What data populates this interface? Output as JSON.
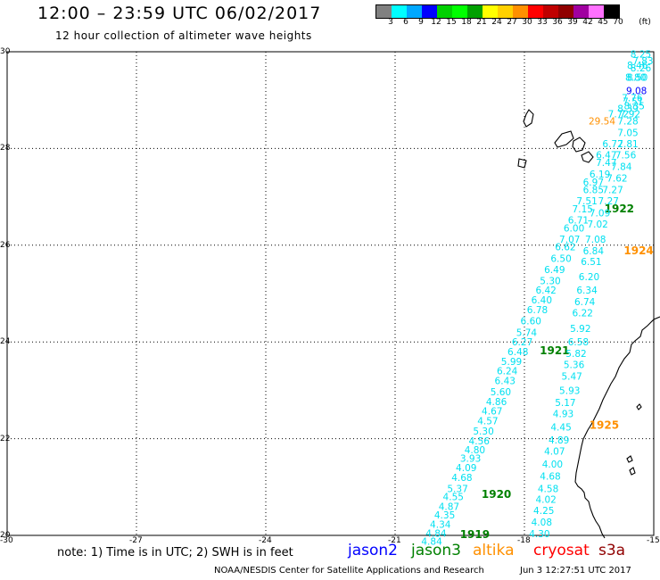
{
  "header": {
    "title": "12:00 – 23:59 UTC 06/02/2017",
    "subtitle": "12 hour collection of altimeter wave heights"
  },
  "legend": {
    "colors": [
      "#808080",
      "#00ffff",
      "#00a8ff",
      "#0000ff",
      "#00d000",
      "#00ff00",
      "#00a000",
      "#ffff00",
      "#ffd000",
      "#ff9000",
      "#ff0000",
      "#c00000",
      "#900000",
      "#a000a0",
      "#ff70ff",
      "#000000"
    ],
    "labels": [
      "3",
      "6",
      "9",
      "12",
      "15",
      "18",
      "21",
      "24",
      "27",
      "30",
      "33",
      "36",
      "39",
      "42",
      "45",
      "70",
      "(ft)"
    ]
  },
  "map": {
    "lon_ticks": [
      "-30",
      "-27",
      "-24",
      "-21",
      "-18",
      "-15"
    ],
    "lat_ticks": [
      "30",
      "28",
      "26",
      "24",
      "22",
      "20"
    ],
    "lat_range": [
      20,
      30
    ],
    "lon_range": [
      -30,
      -15
    ],
    "track_color": "#00e0f0",
    "labels": [
      {
        "text": "8.25",
        "lon": -15.3,
        "lat": 29.95,
        "color": "#00e0f0"
      },
      {
        "text": "7.83",
        "lon": -15.25,
        "lat": 29.82,
        "color": "#00e0f0"
      },
      {
        "text": "8.46",
        "lon": -15.38,
        "lat": 29.72,
        "color": "#00e0f0"
      },
      {
        "text": "8.26",
        "lon": -15.3,
        "lat": 29.67,
        "color": "#00e0f0"
      },
      {
        "text": "8.80",
        "lon": -15.42,
        "lat": 29.47,
        "color": "#00e0f0"
      },
      {
        "text": "8.50",
        "lon": -15.38,
        "lat": 29.47,
        "color": "#00e0f0"
      },
      {
        "text": "9.08",
        "lon": -15.4,
        "lat": 29.2,
        "color": "#0000ff"
      },
      {
        "text": "7.76",
        "lon": -15.5,
        "lat": 29.05,
        "color": "#00e0f0"
      },
      {
        "text": "7.51",
        "lon": -15.48,
        "lat": 28.98,
        "color": "#00e0f0"
      },
      {
        "text": "8.35",
        "lon": -15.45,
        "lat": 28.88,
        "color": "#00e0f0"
      },
      {
        "text": "8.39",
        "lon": -15.6,
        "lat": 28.83,
        "color": "#00e0f0"
      },
      {
        "text": "7.72",
        "lon": -15.82,
        "lat": 28.72,
        "color": "#00e0f0"
      },
      {
        "text": "7.92",
        "lon": -15.55,
        "lat": 28.72,
        "color": "#00e0f0"
      },
      {
        "text": "29.54",
        "lon": -16.2,
        "lat": 28.57,
        "color": "#ff9000"
      },
      {
        "text": "7.28",
        "lon": -15.6,
        "lat": 28.57,
        "color": "#00e0f0"
      },
      {
        "text": "7.05",
        "lon": -15.6,
        "lat": 28.33,
        "color": "#00e0f0"
      },
      {
        "text": "6.72",
        "lon": -15.95,
        "lat": 28.1,
        "color": "#00e0f0"
      },
      {
        "text": "7.81",
        "lon": -15.6,
        "lat": 28.1,
        "color": "#00e0f0"
      },
      {
        "text": "6.47",
        "lon": -16.1,
        "lat": 27.87,
        "color": "#00e0f0"
      },
      {
        "text": "7.56",
        "lon": -15.65,
        "lat": 27.87,
        "color": "#00e0f0"
      },
      {
        "text": "7.47",
        "lon": -16.1,
        "lat": 27.71,
        "color": "#00e0f0"
      },
      {
        "text": "7.84",
        "lon": -15.75,
        "lat": 27.63,
        "color": "#00e0f0"
      },
      {
        "text": "6.19",
        "lon": -16.25,
        "lat": 27.47,
        "color": "#00e0f0"
      },
      {
        "text": "7.62",
        "lon": -15.85,
        "lat": 27.39,
        "color": "#00e0f0"
      },
      {
        "text": "6.97",
        "lon": -16.4,
        "lat": 27.31,
        "color": "#00e0f0"
      },
      {
        "text": "6.85",
        "lon": -16.4,
        "lat": 27.15,
        "color": "#00e0f0"
      },
      {
        "text": "7.27",
        "lon": -15.95,
        "lat": 27.15,
        "color": "#00e0f0"
      },
      {
        "text": "7.51",
        "lon": -16.55,
        "lat": 26.92,
        "color": "#00e0f0"
      },
      {
        "text": "7.27",
        "lon": -16.05,
        "lat": 26.92,
        "color": "#00e0f0"
      },
      {
        "text": "7.15",
        "lon": -16.65,
        "lat": 26.75,
        "color": "#00e0f0"
      },
      {
        "text": "1922",
        "lon": -15.8,
        "lat": 26.75,
        "color": "#008000",
        "bold": true
      },
      {
        "text": "7.09",
        "lon": -16.25,
        "lat": 26.67,
        "color": "#00e0f0"
      },
      {
        "text": "6.71",
        "lon": -16.75,
        "lat": 26.52,
        "color": "#00e0f0"
      },
      {
        "text": "7.02",
        "lon": -16.3,
        "lat": 26.44,
        "color": "#00e0f0"
      },
      {
        "text": "6.00",
        "lon": -16.85,
        "lat": 26.36,
        "color": "#00e0f0"
      },
      {
        "text": "7.07",
        "lon": -16.95,
        "lat": 26.13,
        "color": "#00e0f0"
      },
      {
        "text": "7.08",
        "lon": -16.35,
        "lat": 26.13,
        "color": "#00e0f0"
      },
      {
        "text": "6.62",
        "lon": -17.05,
        "lat": 25.97,
        "color": "#00e0f0"
      },
      {
        "text": "6.84",
        "lon": -16.4,
        "lat": 25.89,
        "color": "#00e0f0"
      },
      {
        "text": "1924",
        "lon": -15.35,
        "lat": 25.89,
        "color": "#ff9000",
        "bold": true
      },
      {
        "text": "6.50",
        "lon": -17.15,
        "lat": 25.73,
        "color": "#00e0f0"
      },
      {
        "text": "6.51",
        "lon": -16.45,
        "lat": 25.66,
        "color": "#00e0f0"
      },
      {
        "text": "6.49",
        "lon": -17.3,
        "lat": 25.5,
        "color": "#00e0f0"
      },
      {
        "text": "5.30",
        "lon": -17.4,
        "lat": 25.27,
        "color": "#00e0f0"
      },
      {
        "text": "6.20",
        "lon": -16.5,
        "lat": 25.35,
        "color": "#00e0f0"
      },
      {
        "text": "6.42",
        "lon": -17.5,
        "lat": 25.07,
        "color": "#00e0f0"
      },
      {
        "text": "6.34",
        "lon": -16.55,
        "lat": 25.07,
        "color": "#00e0f0"
      },
      {
        "text": "6.40",
        "lon": -17.6,
        "lat": 24.87,
        "color": "#00e0f0"
      },
      {
        "text": "6.74",
        "lon": -16.6,
        "lat": 24.83,
        "color": "#00e0f0"
      },
      {
        "text": "6.78",
        "lon": -17.7,
        "lat": 24.67,
        "color": "#00e0f0"
      },
      {
        "text": "6.22",
        "lon": -16.65,
        "lat": 24.6,
        "color": "#00e0f0"
      },
      {
        "text": "6.60",
        "lon": -17.85,
        "lat": 24.44,
        "color": "#00e0f0"
      },
      {
        "text": "5.74",
        "lon": -17.95,
        "lat": 24.2,
        "color": "#00e0f0"
      },
      {
        "text": "5.92",
        "lon": -16.7,
        "lat": 24.28,
        "color": "#00e0f0"
      },
      {
        "text": "6.27",
        "lon": -18.05,
        "lat": 24.0,
        "color": "#00e0f0"
      },
      {
        "text": "6.58",
        "lon": -16.75,
        "lat": 24.0,
        "color": "#00e0f0"
      },
      {
        "text": "6.48",
        "lon": -18.15,
        "lat": 23.8,
        "color": "#00e0f0"
      },
      {
        "text": "1921",
        "lon": -17.3,
        "lat": 23.82,
        "color": "#008000",
        "bold": true
      },
      {
        "text": "5.82",
        "lon": -16.8,
        "lat": 23.76,
        "color": "#00e0f0"
      },
      {
        "text": "5.99",
        "lon": -18.3,
        "lat": 23.6,
        "color": "#00e0f0"
      },
      {
        "text": "5.36",
        "lon": -16.85,
        "lat": 23.53,
        "color": "#00e0f0"
      },
      {
        "text": "6.24",
        "lon": -18.4,
        "lat": 23.4,
        "color": "#00e0f0"
      },
      {
        "text": "6.43",
        "lon": -18.45,
        "lat": 23.2,
        "color": "#00e0f0"
      },
      {
        "text": "5.47",
        "lon": -16.9,
        "lat": 23.29,
        "color": "#00e0f0"
      },
      {
        "text": "5.60",
        "lon": -18.55,
        "lat": 22.97,
        "color": "#00e0f0"
      },
      {
        "text": "5.93",
        "lon": -16.95,
        "lat": 23.0,
        "color": "#00e0f0"
      },
      {
        "text": "4.86",
        "lon": -18.65,
        "lat": 22.77,
        "color": "#00e0f0"
      },
      {
        "text": "5.17",
        "lon": -17.05,
        "lat": 22.75,
        "color": "#00e0f0"
      },
      {
        "text": "4.67",
        "lon": -18.75,
        "lat": 22.57,
        "color": "#00e0f0"
      },
      {
        "text": "4.93",
        "lon": -17.1,
        "lat": 22.52,
        "color": "#00e0f0"
      },
      {
        "text": "4.57",
        "lon": -18.85,
        "lat": 22.37,
        "color": "#00e0f0"
      },
      {
        "text": "1925",
        "lon": -16.15,
        "lat": 22.28,
        "color": "#ff9000",
        "bold": true
      },
      {
        "text": "5.30",
        "lon": -18.95,
        "lat": 22.16,
        "color": "#00e0f0"
      },
      {
        "text": "4.45",
        "lon": -17.15,
        "lat": 22.24,
        "color": "#00e0f0"
      },
      {
        "text": "4.56",
        "lon": -19.05,
        "lat": 21.96,
        "color": "#00e0f0"
      },
      {
        "text": "4.89",
        "lon": -17.2,
        "lat": 21.97,
        "color": "#00e0f0"
      },
      {
        "text": "4.80",
        "lon": -19.15,
        "lat": 21.77,
        "color": "#00e0f0"
      },
      {
        "text": "4.07",
        "lon": -17.3,
        "lat": 21.74,
        "color": "#00e0f0"
      },
      {
        "text": "3.93",
        "lon": -19.25,
        "lat": 21.6,
        "color": "#00e0f0"
      },
      {
        "text": "4.00",
        "lon": -17.35,
        "lat": 21.48,
        "color": "#00e0f0"
      },
      {
        "text": "4.09",
        "lon": -19.35,
        "lat": 21.4,
        "color": "#00e0f0"
      },
      {
        "text": "4.68",
        "lon": -19.45,
        "lat": 21.2,
        "color": "#00e0f0"
      },
      {
        "text": "4.68",
        "lon": -17.4,
        "lat": 21.23,
        "color": "#00e0f0"
      },
      {
        "text": "5.37",
        "lon": -19.55,
        "lat": 20.97,
        "color": "#00e0f0"
      },
      {
        "text": "4.58",
        "lon": -17.45,
        "lat": 20.97,
        "color": "#00e0f0"
      },
      {
        "text": "1920",
        "lon": -18.65,
        "lat": 20.85,
        "color": "#008000",
        "bold": true
      },
      {
        "text": "4.55",
        "lon": -19.65,
        "lat": 20.8,
        "color": "#00e0f0"
      },
      {
        "text": "4.02",
        "lon": -17.5,
        "lat": 20.75,
        "color": "#00e0f0"
      },
      {
        "text": "4.87",
        "lon": -19.75,
        "lat": 20.6,
        "color": "#00e0f0"
      },
      {
        "text": "4.25",
        "lon": -17.55,
        "lat": 20.52,
        "color": "#00e0f0"
      },
      {
        "text": "4.35",
        "lon": -19.85,
        "lat": 20.42,
        "color": "#00e0f0"
      },
      {
        "text": "4.34",
        "lon": -19.95,
        "lat": 20.23,
        "color": "#00e0f0"
      },
      {
        "text": "4.08",
        "lon": -17.6,
        "lat": 20.28,
        "color": "#00e0f0"
      },
      {
        "text": "4.84",
        "lon": -20.05,
        "lat": 20.05,
        "color": "#00e0f0"
      },
      {
        "text": "4.30",
        "lon": -17.65,
        "lat": 20.04,
        "color": "#00e0f0"
      },
      {
        "text": "1919",
        "lon": -19.15,
        "lat": 20.02,
        "color": "#008000",
        "bold": true
      },
      {
        "text": "4.84",
        "lon": -20.15,
        "lat": 19.88,
        "color": "#00e0f0"
      }
    ]
  },
  "footer": {
    "note": "note: 1) Time is in UTC; 2) SWH is in feet",
    "satellites": [
      {
        "name": "jason2",
        "color": "#0000ff"
      },
      {
        "name": "jason3",
        "color": "#008000"
      },
      {
        "name": "altika",
        "color": "#ff9000"
      },
      {
        "name": "cryosat",
        "color": "#ff0000"
      },
      {
        "name": "s3a",
        "color": "#900000"
      }
    ],
    "credit": "NOAA/NESDIS Center for Satellite Applications and Research",
    "timestamp": "Jun  3 12:27:51 UTC 2017"
  }
}
